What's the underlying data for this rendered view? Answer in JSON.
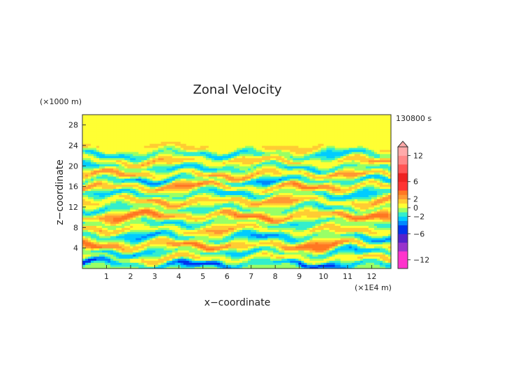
{
  "chart_data": {
    "type": "heatmap",
    "title": "Zonal Velocity",
    "xlabel": "x−coordinate",
    "ylabel": "z−coordinate",
    "x_unit": "(×1E4 m)",
    "y_unit": "(×1000 m)",
    "time_label": "130800 s",
    "xlim": [
      0,
      12.8
    ],
    "ylim": [
      0,
      30
    ],
    "x_ticks": [
      1,
      2,
      3,
      4,
      5,
      6,
      7,
      8,
      9,
      10,
      11,
      12
    ],
    "y_ticks": [
      4,
      8,
      12,
      16,
      20,
      24,
      28
    ],
    "colorbar": {
      "tick_labels": [
        {
          "value": 12,
          "label": "12"
        },
        {
          "value": 6,
          "label": "6"
        },
        {
          "value": 2,
          "label": "2"
        },
        {
          "value": 0,
          "label": "0"
        },
        {
          "value": -2,
          "label": "−2"
        },
        {
          "value": -6,
          "label": "−6"
        },
        {
          "value": -12,
          "label": "−12"
        }
      ],
      "levels": [
        {
          "min": -14,
          "max": -10,
          "color": "#ff33cc"
        },
        {
          "min": -10,
          "max": -8,
          "color": "#9933cc"
        },
        {
          "min": -8,
          "max": -6,
          "color": "#5522cc"
        },
        {
          "min": -6,
          "max": -4,
          "color": "#0033ee"
        },
        {
          "min": -4,
          "max": -3,
          "color": "#0088ff"
        },
        {
          "min": -3,
          "max": -2,
          "color": "#00ccff"
        },
        {
          "min": -2,
          "max": -1,
          "color": "#33eecc"
        },
        {
          "min": -1,
          "max": 0,
          "color": "#99ff66"
        },
        {
          "min": 0,
          "max": 1,
          "color": "#ffff33"
        },
        {
          "min": 1,
          "max": 2,
          "color": "#ffcc33"
        },
        {
          "min": 2,
          "max": 3,
          "color": "#ff9933"
        },
        {
          "min": 3,
          "max": 4,
          "color": "#ff7722"
        },
        {
          "min": 4,
          "max": 6,
          "color": "#ff3333"
        },
        {
          "min": 6,
          "max": 8,
          "color": "#ee2222"
        },
        {
          "min": 8,
          "max": 10,
          "color": "#ff5555"
        },
        {
          "min": 10,
          "max": 12,
          "color": "#ff8888"
        },
        {
          "min": 12,
          "max": 14,
          "color": "#ffaaaa"
        }
      ]
    },
    "bands": [
      {
        "z": 1.0,
        "amp": -4.5,
        "width": 0.7
      },
      {
        "z": 2.0,
        "amp": 2.0,
        "width": 0.8
      },
      {
        "z": 3.3,
        "amp": -3.0,
        "width": 0.8
      },
      {
        "z": 4.5,
        "amp": 3.5,
        "width": 0.9
      },
      {
        "z": 6.2,
        "amp": -3.0,
        "width": 0.9
      },
      {
        "z": 7.6,
        "amp": 2.0,
        "width": 0.8
      },
      {
        "z": 9.0,
        "amp": -2.0,
        "width": 0.8
      },
      {
        "z": 10.3,
        "amp": 3.5,
        "width": 0.8
      },
      {
        "z": 11.7,
        "amp": -2.0,
        "width": 0.8
      },
      {
        "z": 13.2,
        "amp": 2.5,
        "width": 0.8
      },
      {
        "z": 14.6,
        "amp": -2.5,
        "width": 0.8
      },
      {
        "z": 16.0,
        "amp": 3.0,
        "width": 0.7
      },
      {
        "z": 17.2,
        "amp": -3.0,
        "width": 0.7
      },
      {
        "z": 18.4,
        "amp": 2.5,
        "width": 0.7
      },
      {
        "z": 19.7,
        "amp": -2.5,
        "width": 0.7
      },
      {
        "z": 21.0,
        "amp": 2.0,
        "width": 0.7
      },
      {
        "z": 22.3,
        "amp": -2.5,
        "width": 0.7
      },
      {
        "z": 23.7,
        "amp": 1.5,
        "width": 0.8
      }
    ]
  }
}
